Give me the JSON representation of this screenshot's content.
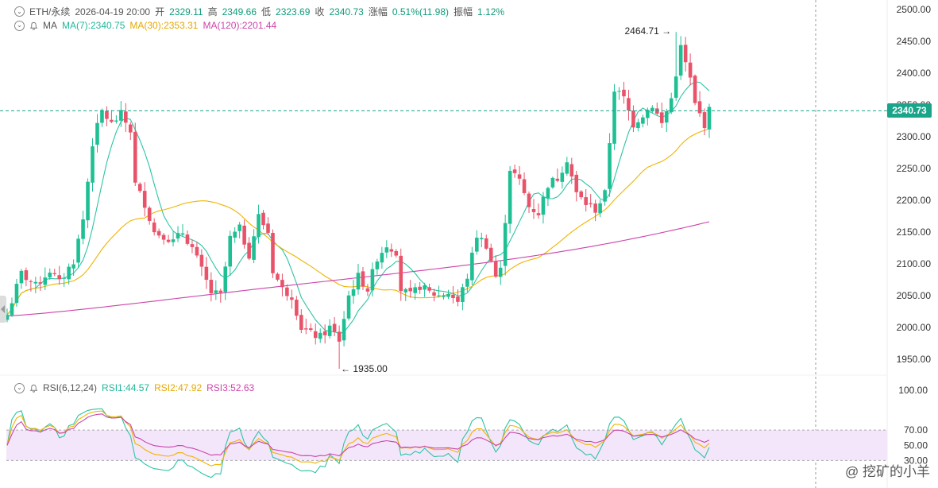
{
  "header": {
    "symbol": "ETH/永续",
    "datetime": "2026-04-19 20:00",
    "open_label": "开",
    "open": "2329.11",
    "high_label": "高",
    "high": "2349.66",
    "low_label": "低",
    "low": "2323.69",
    "close_label": "收",
    "close": "2340.73",
    "change_label": "涨幅",
    "change": "0.51%(11.98)",
    "amp_label": "振幅",
    "amp": "1.12%"
  },
  "ma_legend": {
    "name": "MA",
    "ma7": "MA(7):2340.75",
    "ma30": "MA(30):2353.31",
    "ma120": "MA(120):2201.44"
  },
  "rsi_legend": {
    "name": "RSI(6,12,24)",
    "rsi1": "RSI1:44.57",
    "rsi2": "RSI2:47.92",
    "rsi3": "RSI3:52.63"
  },
  "current_price_tag": "2340.73",
  "watermark": "@ 挖矿的小羊",
  "colors": {
    "up": "#1fbf94",
    "down": "#e8536a",
    "ma7": "#2ec4a5",
    "ma30": "#f0b400",
    "ma120": "#cc44aa",
    "rsi1": "#2ec4a5",
    "rsi2": "#f0b400",
    "rsi3": "#cc44aa",
    "rsi_band": "#f3e6fb"
  },
  "chart_data": {
    "type": "candlestick",
    "price_axis": {
      "min": 1925,
      "max": 2515,
      "ticks": [
        "2500.00",
        "2450.00",
        "2400.00",
        "2350.00",
        "2300.00",
        "2250.00",
        "2200.00",
        "2150.00",
        "2100.00",
        "2050.00",
        "2000.00",
        "1950.00"
      ]
    },
    "rsi_axis": {
      "min": 0,
      "max": 110,
      "ticks": [
        "100.00",
        "70.00",
        "50.00",
        "30.00"
      ],
      "band": [
        30,
        70
      ]
    },
    "annotations": [
      {
        "label": "2464.71",
        "value": 2464.71,
        "type": "high",
        "bar": 141
      },
      {
        "label": "1935.00",
        "value": 1935.0,
        "type": "low",
        "bar": 70
      }
    ],
    "anchors": [
      [
        0,
        2020
      ],
      [
        3,
        2085
      ],
      [
        6,
        2065
      ],
      [
        9,
        2090
      ],
      [
        11,
        2070
      ],
      [
        14,
        2105
      ],
      [
        16,
        2170
      ],
      [
        18,
        2290
      ],
      [
        20,
        2340
      ],
      [
        22,
        2320
      ],
      [
        24,
        2335
      ],
      [
        26,
        2310
      ],
      [
        27,
        2225
      ],
      [
        29,
        2195
      ],
      [
        31,
        2150
      ],
      [
        33,
        2145
      ],
      [
        35,
        2135
      ],
      [
        37,
        2150
      ],
      [
        39,
        2125
      ],
      [
        41,
        2090
      ],
      [
        43,
        2055
      ],
      [
        45,
        2050
      ],
      [
        47,
        2140
      ],
      [
        49,
        2155
      ],
      [
        51,
        2115
      ],
      [
        53,
        2175
      ],
      [
        55,
        2150
      ],
      [
        56,
        2090
      ],
      [
        58,
        2060
      ],
      [
        60,
        2050
      ],
      [
        62,
        2000
      ],
      [
        64,
        1990
      ],
      [
        66,
        1985
      ],
      [
        68,
        2000
      ],
      [
        70,
        1980
      ],
      [
        72,
        2050
      ],
      [
        74,
        2080
      ],
      [
        76,
        2060
      ],
      [
        78,
        2110
      ],
      [
        80,
        2130
      ],
      [
        82,
        2120
      ],
      [
        83,
        2060
      ],
      [
        85,
        2050
      ],
      [
        87,
        2065
      ],
      [
        89,
        2055
      ],
      [
        91,
        2050
      ],
      [
        93,
        2055
      ],
      [
        95,
        2040
      ],
      [
        97,
        2080
      ],
      [
        99,
        2145
      ],
      [
        101,
        2130
      ],
      [
        103,
        2080
      ],
      [
        104,
        2090
      ],
      [
        106,
        2250
      ],
      [
        108,
        2230
      ],
      [
        110,
        2190
      ],
      [
        112,
        2180
      ],
      [
        114,
        2225
      ],
      [
        116,
        2235
      ],
      [
        118,
        2265
      ],
      [
        120,
        2210
      ],
      [
        122,
        2195
      ],
      [
        124,
        2185
      ],
      [
        126,
        2210
      ],
      [
        128,
        2375
      ],
      [
        130,
        2360
      ],
      [
        132,
        2320
      ],
      [
        134,
        2335
      ],
      [
        136,
        2350
      ],
      [
        138,
        2320
      ],
      [
        140,
        2360
      ],
      [
        142,
        2440
      ],
      [
        144,
        2390
      ],
      [
        145,
        2350
      ],
      [
        147,
        2320
      ],
      [
        148,
        2341
      ]
    ],
    "bar_count": 149,
    "ma_periods": [
      7,
      30,
      120
    ],
    "rsi_periods": [
      6,
      12,
      24
    ]
  }
}
